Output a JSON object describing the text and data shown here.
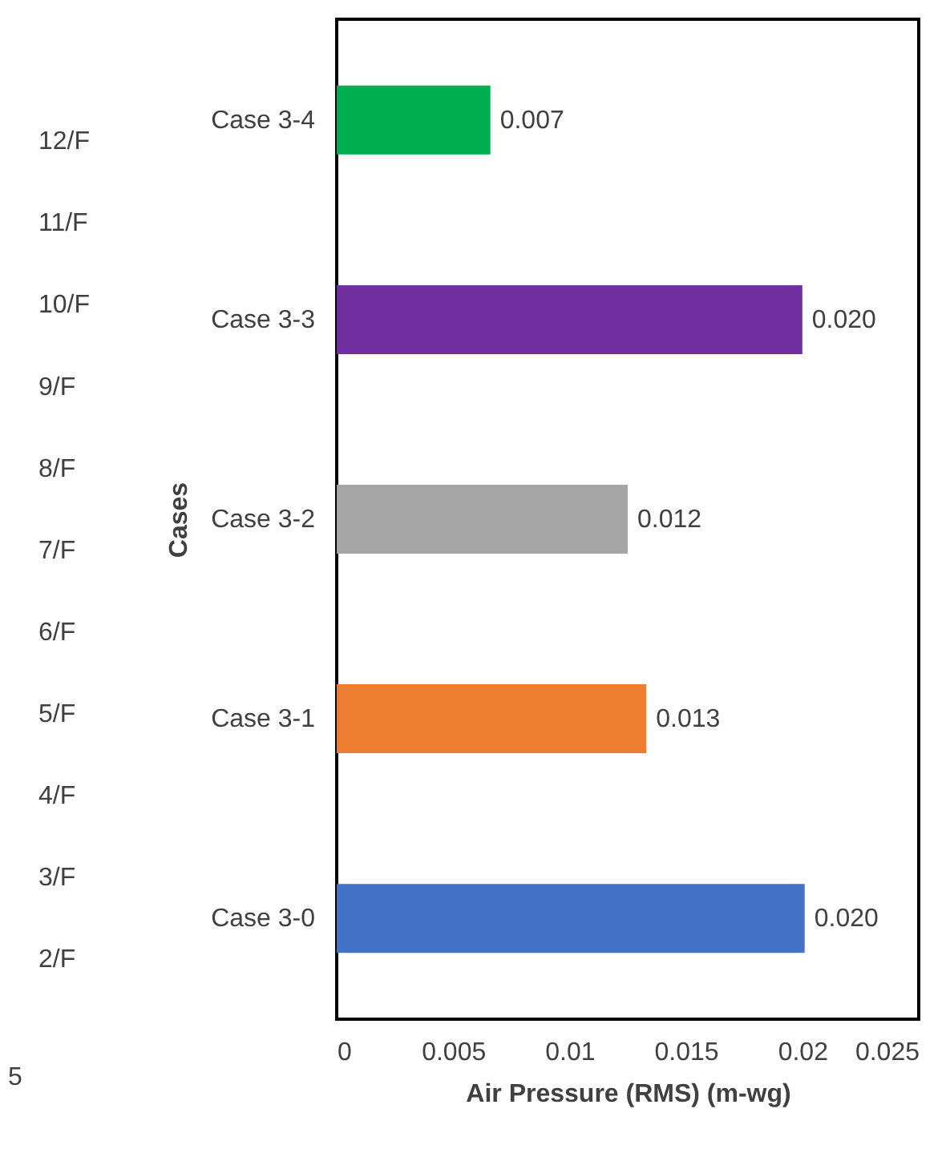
{
  "chart_data": {
    "type": "bar",
    "orientation": "horizontal",
    "categories": [
      "Case 3-4",
      "Case 3-3",
      "Case 3-2",
      "Case 3-1",
      "Case 3-0"
    ],
    "values": [
      0.0066,
      0.02,
      0.0125,
      0.0133,
      0.0201
    ],
    "colors": [
      "#00b050",
      "#7030a0",
      "#a5a5a5",
      "#ed7d31",
      "#4472c4"
    ],
    "value_labels": [
      "0.007",
      "0.020",
      "0.012",
      "0.013",
      "0.020"
    ],
    "xlabel": "Air Pressure (RMS) (m-wg)",
    "ylabel": "Cases",
    "xlim": [
      0,
      0.025
    ],
    "xticks": [
      0,
      0.005,
      0.01,
      0.015,
      0.02,
      0.025
    ],
    "grid": false,
    "annotations": [
      "12/F",
      "11/F",
      "10/F",
      "9/F",
      "8/F",
      "7/F",
      "6/F",
      "5/F",
      "4/F",
      "3/F",
      "2/F",
      "5"
    ]
  }
}
